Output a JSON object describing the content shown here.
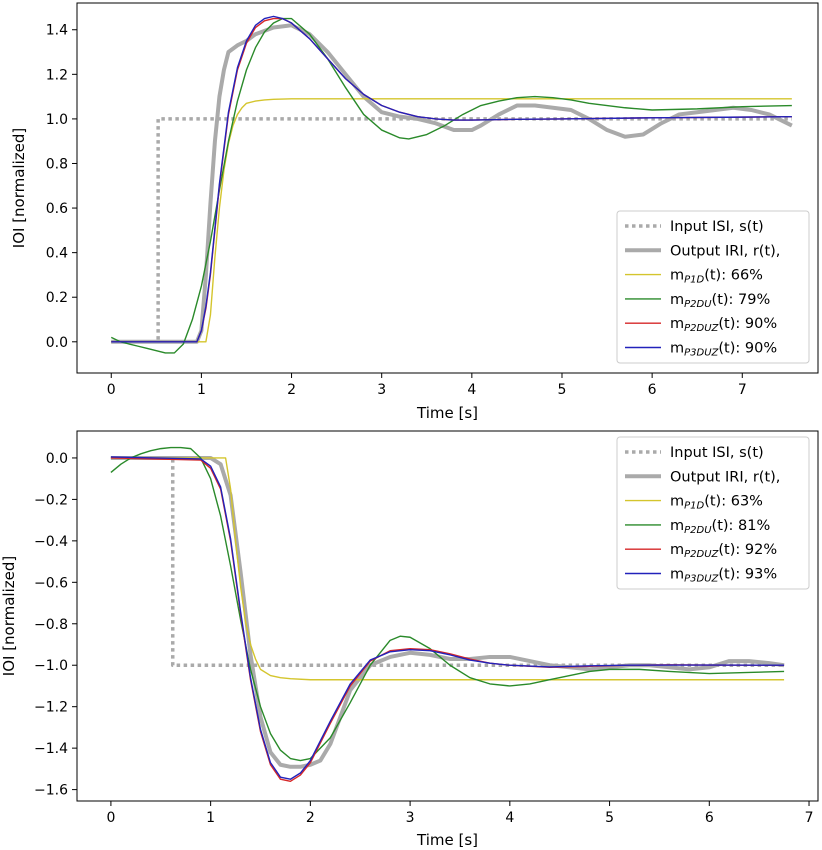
{
  "chart_data": [
    {
      "type": "line",
      "xlabel": "Time [s]",
      "ylabel": "IOI [normalized]",
      "xlim": [
        -0.38,
        7.84
      ],
      "ylim": [
        -0.14,
        1.52
      ],
      "xticks": [
        0,
        1,
        2,
        3,
        4,
        5,
        6,
        7
      ],
      "xtick_labels": [
        "0",
        "1",
        "2",
        "3",
        "4",
        "5",
        "6",
        "7"
      ],
      "yticks": [
        0.0,
        0.2,
        0.4,
        0.6,
        0.8,
        1.0,
        1.2,
        1.4
      ],
      "ytick_labels": [
        "0.0",
        "0.2",
        "0.4",
        "0.6",
        "0.8",
        "1.0",
        "1.2",
        "1.4"
      ],
      "grid": false,
      "legend_position": "lower-right",
      "series": [
        {
          "name": "Input ISI, s(t)",
          "color": "#aaaaaa",
          "style": "dotted",
          "x": [
            0,
            0.52,
            0.52,
            7.55
          ],
          "y": [
            0,
            0,
            1.0,
            1.0
          ]
        },
        {
          "name": "Output IRI, r(t),",
          "color": "#aaaaaa",
          "style": "thick",
          "x": [
            0,
            0.95,
            1.0,
            1.05,
            1.1,
            1.15,
            1.2,
            1.25,
            1.3,
            1.4,
            1.5,
            1.6,
            1.8,
            2.0,
            2.2,
            2.4,
            2.6,
            2.8,
            3.0,
            3.2,
            3.4,
            3.6,
            3.8,
            4.0,
            4.1,
            4.3,
            4.5,
            4.7,
            4.9,
            5.1,
            5.3,
            5.5,
            5.7,
            5.9,
            6.1,
            6.3,
            6.5,
            6.7,
            6.9,
            7.1,
            7.3,
            7.55
          ],
          "y": [
            0,
            0,
            0.05,
            0.3,
            0.62,
            0.9,
            1.1,
            1.22,
            1.3,
            1.33,
            1.35,
            1.38,
            1.41,
            1.42,
            1.38,
            1.3,
            1.2,
            1.1,
            1.03,
            1.01,
            1.0,
            0.98,
            0.95,
            0.95,
            0.97,
            1.02,
            1.06,
            1.06,
            1.05,
            1.04,
            1.0,
            0.95,
            0.92,
            0.93,
            0.98,
            1.02,
            1.03,
            1.04,
            1.05,
            1.04,
            1.02,
            0.97
          ]
        },
        {
          "name": "m_P1D(t): 66%",
          "name_main": "m",
          "name_sub": "P1D",
          "name_rest": "(t): 66%",
          "color": "#d4c52d",
          "style": "thin",
          "x": [
            0,
            1.05,
            1.1,
            1.15,
            1.2,
            1.25,
            1.3,
            1.35,
            1.4,
            1.45,
            1.5,
            1.6,
            1.7,
            1.8,
            2.0,
            2.5,
            3.0,
            4.0,
            5.0,
            6.0,
            7.0,
            7.55
          ],
          "y": [
            0,
            0,
            0.12,
            0.38,
            0.6,
            0.77,
            0.89,
            0.97,
            1.02,
            1.05,
            1.07,
            1.08,
            1.085,
            1.088,
            1.09,
            1.09,
            1.09,
            1.09,
            1.09,
            1.09,
            1.09,
            1.09
          ]
        },
        {
          "name": "m_P2DU(t): 79%",
          "name_main": "m",
          "name_sub": "P2DU",
          "name_rest": "(t): 79%",
          "color": "#2a8a2a",
          "style": "thin",
          "x": [
            0,
            0.1,
            0.2,
            0.3,
            0.4,
            0.5,
            0.6,
            0.7,
            0.8,
            0.9,
            1.0,
            1.1,
            1.2,
            1.3,
            1.4,
            1.5,
            1.6,
            1.7,
            1.8,
            1.9,
            2.0,
            2.2,
            2.4,
            2.6,
            2.8,
            3.0,
            3.2,
            3.3,
            3.5,
            3.7,
            3.9,
            4.1,
            4.3,
            4.5,
            4.7,
            4.9,
            5.1,
            5.3,
            5.5,
            5.7,
            6.0,
            6.5,
            7.0,
            7.55
          ],
          "y": [
            0.02,
            0.0,
            -0.01,
            -0.02,
            -0.03,
            -0.04,
            -0.05,
            -0.05,
            -0.01,
            0.1,
            0.25,
            0.45,
            0.68,
            0.9,
            1.08,
            1.22,
            1.32,
            1.39,
            1.43,
            1.45,
            1.45,
            1.38,
            1.27,
            1.14,
            1.02,
            0.95,
            0.915,
            0.91,
            0.93,
            0.97,
            1.02,
            1.06,
            1.08,
            1.095,
            1.1,
            1.095,
            1.085,
            1.07,
            1.06,
            1.05,
            1.04,
            1.045,
            1.055,
            1.06
          ]
        },
        {
          "name": "m_P2DUZ(t): 90%",
          "name_main": "m",
          "name_sub": "P2DUZ",
          "name_rest": "(t): 90%",
          "color": "#d62728",
          "style": "thin",
          "x": [
            0,
            0.95,
            1.0,
            1.05,
            1.1,
            1.15,
            1.2,
            1.3,
            1.4,
            1.5,
            1.6,
            1.7,
            1.8,
            1.9,
            2.0,
            2.2,
            2.4,
            2.6,
            2.8,
            3.0,
            3.2,
            3.4,
            3.6,
            3.8,
            4.0,
            4.5,
            5.0,
            6.0,
            7.0,
            7.55
          ],
          "y": [
            0,
            0,
            0.05,
            0.15,
            0.3,
            0.5,
            0.7,
            1.02,
            1.22,
            1.34,
            1.41,
            1.44,
            1.45,
            1.45,
            1.43,
            1.36,
            1.27,
            1.18,
            1.11,
            1.06,
            1.03,
            1.01,
            1.0,
            0.995,
            0.995,
            0.998,
            1.0,
            1.005,
            1.008,
            1.01
          ]
        },
        {
          "name": "m_P3DUZ(t): 90%",
          "name_main": "m",
          "name_sub": "P3DUZ",
          "name_rest": "(t): 90%",
          "color": "#2222bb",
          "style": "thin",
          "x": [
            0,
            0.95,
            1.0,
            1.05,
            1.1,
            1.15,
            1.2,
            1.3,
            1.4,
            1.5,
            1.6,
            1.7,
            1.8,
            1.9,
            2.0,
            2.2,
            2.4,
            2.6,
            2.8,
            3.0,
            3.2,
            3.4,
            3.6,
            3.8,
            4.0,
            4.5,
            5.0,
            6.0,
            7.0,
            7.55
          ],
          "y": [
            0,
            0,
            0.05,
            0.16,
            0.31,
            0.51,
            0.71,
            1.03,
            1.23,
            1.35,
            1.42,
            1.45,
            1.46,
            1.45,
            1.43,
            1.36,
            1.27,
            1.18,
            1.11,
            1.06,
            1.03,
            1.01,
            1.0,
            0.995,
            0.995,
            0.998,
            1.0,
            1.005,
            1.008,
            1.01
          ]
        }
      ]
    },
    {
      "type": "line",
      "xlabel": "Time [s]",
      "ylabel": "IOI [normalized]",
      "xlim": [
        -0.34,
        7.09
      ],
      "ylim": [
        -1.655,
        0.13
      ],
      "xticks": [
        0,
        1,
        2,
        3,
        4,
        5,
        6,
        7
      ],
      "xtick_labels": [
        "0",
        "1",
        "2",
        "3",
        "4",
        "5",
        "6",
        "7"
      ],
      "yticks": [
        0.0,
        -0.2,
        -0.4,
        -0.6,
        -0.8,
        -1.0,
        -1.2,
        -1.4,
        -1.6
      ],
      "ytick_labels": [
        "0.0",
        "−0.2",
        "−0.4",
        "−0.6",
        "−0.8",
        "−1.0",
        "−1.2",
        "−1.4",
        "−1.6"
      ],
      "grid": false,
      "legend_position": "upper-right",
      "series": [
        {
          "name": "Input ISI, s(t)",
          "color": "#aaaaaa",
          "style": "dotted",
          "x": [
            0,
            0.62,
            0.62,
            6.75
          ],
          "y": [
            0,
            0,
            -1.0,
            -1.0
          ]
        },
        {
          "name": "Output IRI, r(t),",
          "color": "#aaaaaa",
          "style": "thick",
          "x": [
            0,
            1.0,
            1.1,
            1.2,
            1.3,
            1.4,
            1.5,
            1.6,
            1.7,
            1.8,
            1.9,
            2.0,
            2.1,
            2.2,
            2.3,
            2.4,
            2.6,
            2.8,
            3.0,
            3.2,
            3.4,
            3.6,
            3.8,
            4.0,
            4.2,
            4.4,
            4.6,
            4.8,
            5.0,
            5.2,
            5.4,
            5.6,
            5.8,
            6.0,
            6.2,
            6.4,
            6.6,
            6.75
          ],
          "y": [
            0,
            0,
            -0.03,
            -0.18,
            -0.55,
            -0.95,
            -1.25,
            -1.42,
            -1.48,
            -1.49,
            -1.49,
            -1.48,
            -1.46,
            -1.38,
            -1.25,
            -1.12,
            -1.0,
            -0.96,
            -0.94,
            -0.95,
            -0.97,
            -0.97,
            -0.96,
            -0.96,
            -0.98,
            -1.0,
            -1.01,
            -1.02,
            -1.01,
            -1.0,
            -1.0,
            -1.01,
            -1.02,
            -1.01,
            -0.98,
            -0.98,
            -0.99,
            -1.0
          ]
        },
        {
          "name": "m_P1D(t): 63%",
          "name_main": "m",
          "name_sub": "P1D",
          "name_rest": "(t): 63%",
          "color": "#d4c52d",
          "style": "thin",
          "x": [
            0,
            1.15,
            1.2,
            1.25,
            1.3,
            1.35,
            1.4,
            1.45,
            1.5,
            1.6,
            1.7,
            1.8,
            2.0,
            3.0,
            4.0,
            5.0,
            6.0,
            6.75
          ],
          "y": [
            0,
            0,
            -0.15,
            -0.4,
            -0.62,
            -0.79,
            -0.9,
            -0.97,
            -1.02,
            -1.05,
            -1.06,
            -1.065,
            -1.07,
            -1.07,
            -1.07,
            -1.07,
            -1.07,
            -1.07
          ]
        },
        {
          "name": "m_P2DU(t): 81%",
          "name_main": "m",
          "name_sub": "P2DU",
          "name_rest": "(t): 81%",
          "color": "#2a8a2a",
          "style": "thin",
          "x": [
            0,
            0.1,
            0.2,
            0.3,
            0.4,
            0.5,
            0.6,
            0.7,
            0.8,
            0.9,
            1.0,
            1.1,
            1.2,
            1.3,
            1.4,
            1.5,
            1.6,
            1.7,
            1.8,
            1.9,
            2.0,
            2.2,
            2.4,
            2.6,
            2.8,
            2.9,
            3.0,
            3.2,
            3.4,
            3.6,
            3.8,
            4.0,
            4.2,
            4.4,
            4.6,
            4.8,
            5.0,
            5.3,
            5.6,
            6.0,
            6.4,
            6.75
          ],
          "y": [
            -0.07,
            -0.03,
            0.0,
            0.02,
            0.035,
            0.045,
            0.05,
            0.05,
            0.045,
            0.0,
            -0.1,
            -0.28,
            -0.52,
            -0.78,
            -1.02,
            -1.2,
            -1.33,
            -1.41,
            -1.45,
            -1.46,
            -1.45,
            -1.35,
            -1.18,
            -1.0,
            -0.88,
            -0.86,
            -0.865,
            -0.92,
            -1.0,
            -1.06,
            -1.09,
            -1.1,
            -1.09,
            -1.07,
            -1.05,
            -1.03,
            -1.02,
            -1.02,
            -1.03,
            -1.04,
            -1.035,
            -1.03
          ]
        },
        {
          "name": "m_P2DUZ(t): 92%",
          "name_main": "m",
          "name_sub": "P2DUZ",
          "name_rest": "(t): 92%",
          "color": "#d62728",
          "style": "thin",
          "x": [
            0,
            0.9,
            1.0,
            1.1,
            1.2,
            1.3,
            1.4,
            1.5,
            1.6,
            1.7,
            1.8,
            1.9,
            2.0,
            2.2,
            2.4,
            2.6,
            2.8,
            3.0,
            3.2,
            3.4,
            3.6,
            3.8,
            4.0,
            4.4,
            4.8,
            5.2,
            5.6,
            6.0,
            6.75
          ],
          "y": [
            0,
            -0.01,
            -0.05,
            -0.15,
            -0.4,
            -0.75,
            -1.07,
            -1.32,
            -1.48,
            -1.55,
            -1.56,
            -1.53,
            -1.47,
            -1.28,
            -1.1,
            -0.98,
            -0.93,
            -0.92,
            -0.925,
            -0.945,
            -0.97,
            -0.99,
            -1.0,
            -1.01,
            -1.005,
            -1.0,
            -0.998,
            -0.999,
            -1.0
          ]
        },
        {
          "name": "m_P3DUZ(t): 93%",
          "name_main": "m",
          "name_sub": "P3DUZ",
          "name_rest": "(t): 93%",
          "color": "#2222bb",
          "style": "thin",
          "x": [
            0,
            0.9,
            1.0,
            1.1,
            1.2,
            1.3,
            1.4,
            1.5,
            1.6,
            1.7,
            1.8,
            1.9,
            2.0,
            2.2,
            2.4,
            2.6,
            2.8,
            3.0,
            3.2,
            3.4,
            3.6,
            3.8,
            4.0,
            4.4,
            4.8,
            5.2,
            5.6,
            6.0,
            6.75
          ],
          "y": [
            0.005,
            -0.005,
            -0.04,
            -0.14,
            -0.39,
            -0.74,
            -1.06,
            -1.31,
            -1.47,
            -1.54,
            -1.55,
            -1.52,
            -1.46,
            -1.27,
            -1.09,
            -0.975,
            -0.935,
            -0.925,
            -0.93,
            -0.95,
            -0.975,
            -0.99,
            -1.0,
            -1.008,
            -1.003,
            -1.0,
            -0.999,
            -0.999,
            -1.0
          ]
        }
      ]
    }
  ]
}
